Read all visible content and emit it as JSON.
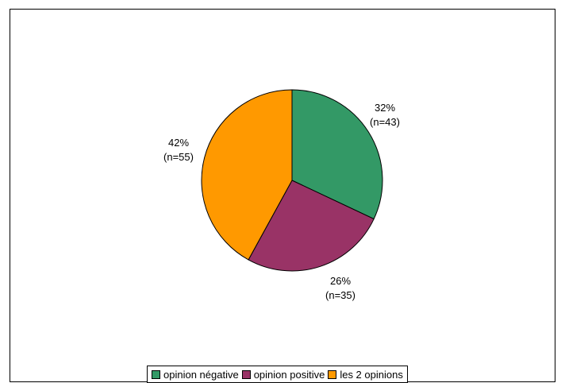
{
  "chart_data": {
    "type": "pie",
    "slices": [
      {
        "label": "opinion négative",
        "percent": 32,
        "percent_text": "32%",
        "n_text": "(n=43)",
        "color": "#339966"
      },
      {
        "label": "opinion positive",
        "percent": 26,
        "percent_text": "26%",
        "n_text": "(n=35)",
        "color": "#993366"
      },
      {
        "label": "les 2 opinions",
        "percent": 42,
        "percent_text": "42%",
        "n_text": "(n=55)",
        "color": "#FF9900"
      }
    ],
    "start_angle_deg": 0,
    "direction": "clockwise",
    "legend_position": "bottom"
  }
}
